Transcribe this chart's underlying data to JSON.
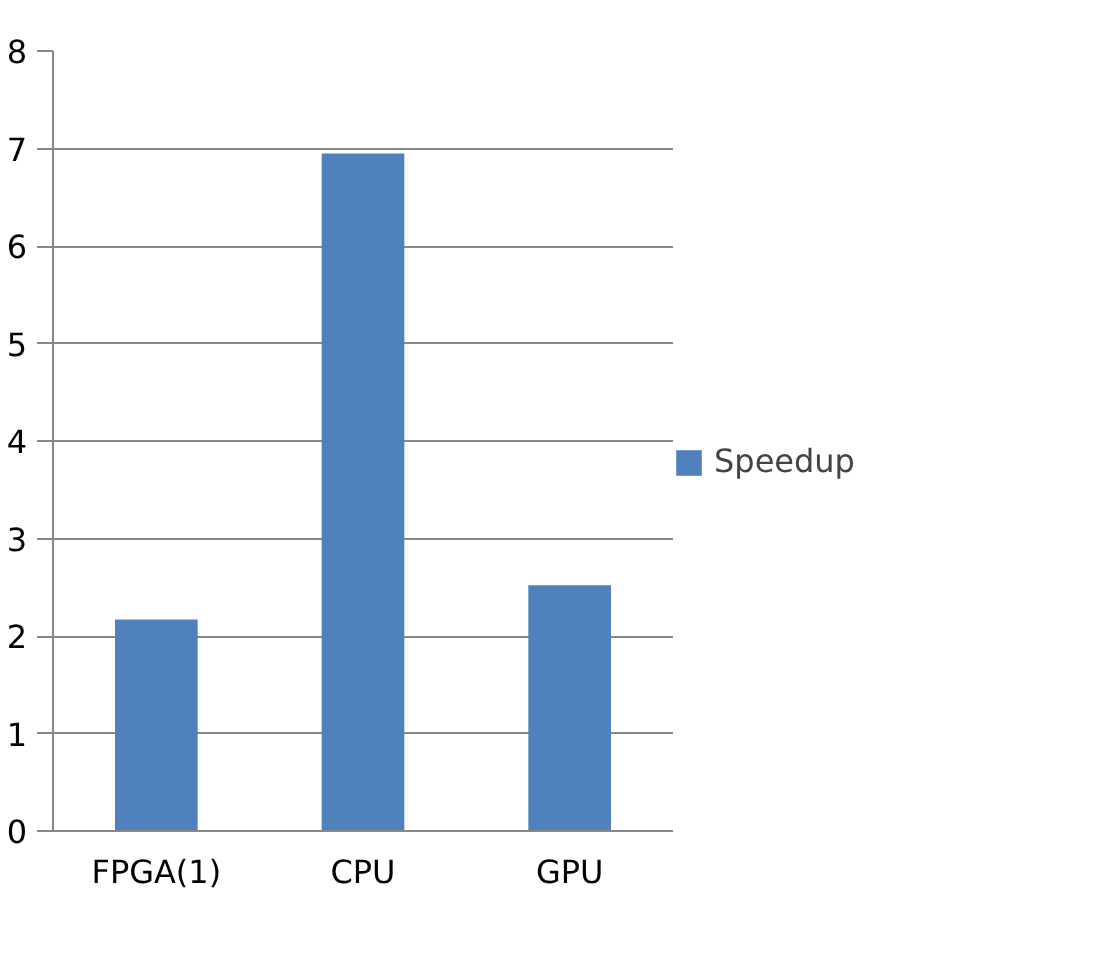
{
  "chart_data": {
    "type": "bar",
    "categories": [
      "FPGA(1)",
      "CPU",
      "GPU"
    ],
    "series": [
      {
        "name": "Speedup",
        "color": "#4f81bd",
        "values": [
          2.17,
          6.95,
          2.52
        ]
      }
    ],
    "ylim": [
      0,
      8
    ],
    "yticks": [
      0,
      1,
      2,
      3,
      4,
      5,
      6,
      7,
      8
    ],
    "grid": "y",
    "legend": "right"
  }
}
